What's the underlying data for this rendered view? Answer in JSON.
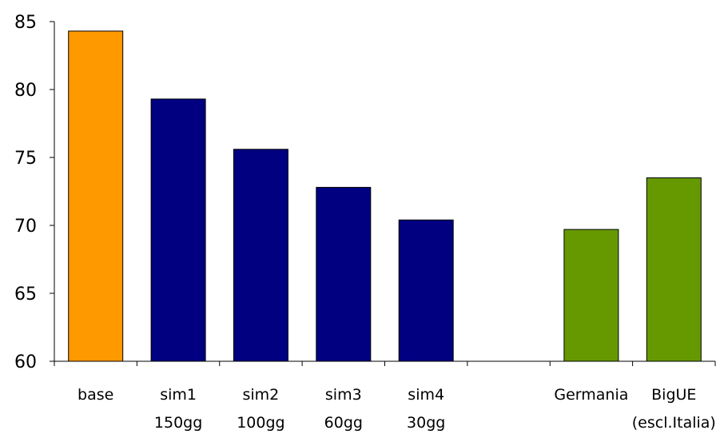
{
  "chart_data": {
    "type": "bar",
    "title": "",
    "xlabel": "",
    "ylabel": "",
    "ylim": [
      60,
      85
    ],
    "yticks": [
      60,
      65,
      70,
      75,
      80,
      85
    ],
    "grid": false,
    "legend": "none",
    "categories": [
      {
        "label_lines": [
          "base"
        ],
        "value": 84.3,
        "color": "#FF9900"
      },
      {
        "label_lines": [
          "sim1",
          "150gg"
        ],
        "value": 79.3,
        "color": "#000080"
      },
      {
        "label_lines": [
          "sim2",
          "100gg"
        ],
        "value": 75.6,
        "color": "#000080"
      },
      {
        "label_lines": [
          "sim3",
          "60gg"
        ],
        "value": 72.8,
        "color": "#000080"
      },
      {
        "label_lines": [
          "sim4",
          "30gg"
        ],
        "value": 70.4,
        "color": "#000080"
      },
      {
        "label_lines": [],
        "value": null,
        "color": ""
      },
      {
        "label_lines": [
          "Germania"
        ],
        "value": 69.7,
        "color": "#669900"
      },
      {
        "label_lines": [
          "BigUE",
          "(escl.Italia)"
        ],
        "value": 73.5,
        "color": "#669900"
      }
    ]
  }
}
